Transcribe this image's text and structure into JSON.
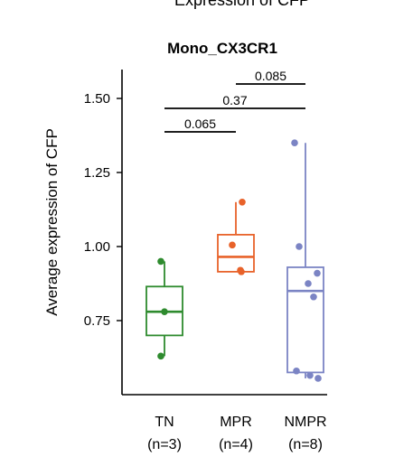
{
  "figure": {
    "suptitle": "Expression of CFP"
  },
  "chart_data": {
    "type": "box",
    "title": "Mono_CX3CR1",
    "ylabel": "Average expression of CFP",
    "xlabel": "",
    "ylim": [
      0.5,
      1.6
    ],
    "yticks": [
      0.75,
      1.0,
      1.25,
      1.5
    ],
    "ytick_labels": [
      "0.75",
      "1.00",
      "1.25",
      "1.50"
    ],
    "grid": false,
    "groups": [
      {
        "name": "TN",
        "count_label": "(n=3)",
        "color": "#2e8b2e",
        "box": {
          "q1": 0.7,
          "median": 0.78,
          "q3": 0.865,
          "whisker_low": 0.63,
          "whisker_high": 0.95
        },
        "points": [
          0.95,
          0.78,
          0.63
        ]
      },
      {
        "name": "MPR",
        "count_label": "(n=4)",
        "color": "#e8622a",
        "box": {
          "q1": 0.915,
          "median": 0.965,
          "q3": 1.04,
          "whisker_low": 0.915,
          "whisker_high": 1.15
        },
        "points": [
          1.15,
          1.005,
          0.92,
          0.915
        ]
      },
      {
        "name": "NMPR",
        "count_label": "(n=8)",
        "color": "#7b84c4",
        "box": {
          "q1": 0.575,
          "median": 0.85,
          "q3": 0.93,
          "whisker_low": 0.555,
          "whisker_high": 1.35
        },
        "points": [
          1.35,
          1.0,
          0.91,
          0.875,
          0.83,
          0.58,
          0.565,
          0.555
        ]
      }
    ],
    "comparisons": [
      {
        "from": "TN",
        "to": "MPR",
        "label": "0.065",
        "level": 0
      },
      {
        "from": "TN",
        "to": "NMPR",
        "label": "0.37",
        "level": 1
      },
      {
        "from": "MPR",
        "to": "NMPR",
        "label": "0.085",
        "level": 2
      }
    ]
  }
}
